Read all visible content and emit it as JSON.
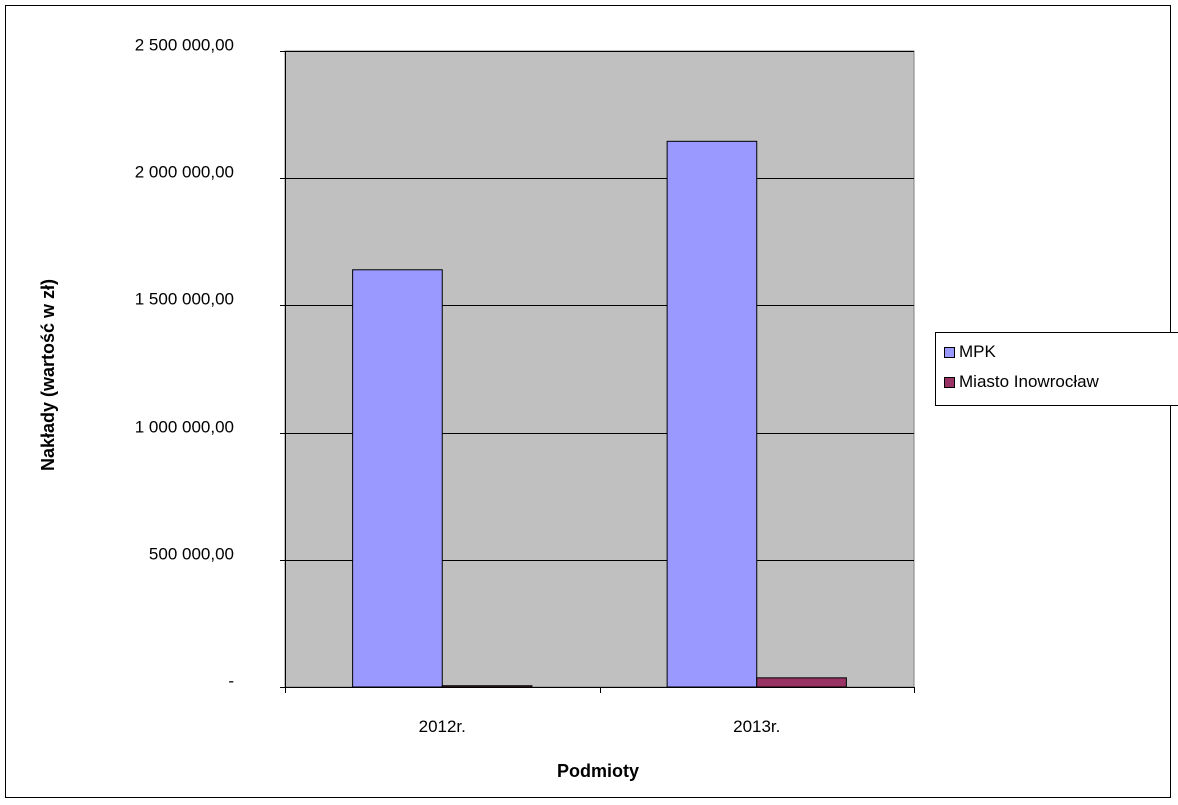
{
  "chart_data": {
    "type": "bar",
    "categories": [
      "2012r.",
      "2013r."
    ],
    "series": [
      {
        "name": "MPK",
        "values": [
          1640000,
          2145000
        ],
        "color": "#9999ff"
      },
      {
        "name": "Miasto Inowrocław",
        "values": [
          5000,
          36000
        ],
        "color": "#993366"
      }
    ],
    "xlabel": "Podmioty",
    "ylabel": "Nakłady (wartość w zł)",
    "ylim": [
      0,
      2500000
    ],
    "yticks": [
      0,
      500000,
      1000000,
      1500000,
      2000000,
      2500000
    ],
    "ytick_labels": [
      "-",
      "500 000,00",
      "1 000 000,00",
      "1 500 000,00",
      "2 000 000,00",
      "2 500 000,00"
    ],
    "grid": true,
    "plot_background": "#c0c0c0",
    "legend_position": "right"
  }
}
